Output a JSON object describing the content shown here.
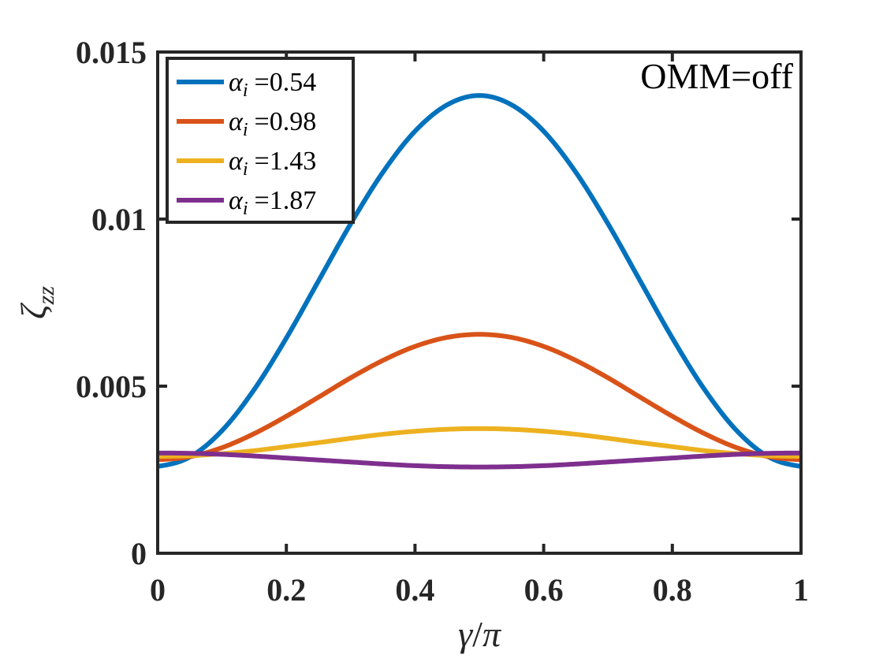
{
  "chart_data": {
    "type": "line",
    "title": "",
    "xlabel": "γ/π",
    "ylabel": "ζzz",
    "xlabel_parts": {
      "sym1": "γ",
      "sep": "/",
      "sym2": "π"
    },
    "ylabel_parts": {
      "sym": "ζ",
      "sub": "zz"
    },
    "xlim": [
      0,
      1
    ],
    "ylim": [
      0,
      0.015
    ],
    "xticks": [
      0,
      0.2,
      0.4,
      0.6,
      0.8,
      1
    ],
    "xtick_labels": [
      "0",
      "0.2",
      "0.4",
      "0.6",
      "0.8",
      "1"
    ],
    "yticks": [
      0,
      0.005,
      0.01,
      0.015
    ],
    "ytick_labels": [
      "0",
      "0.005",
      "0.01",
      "0.015"
    ],
    "grid": false,
    "legend_position": "top-left",
    "annotation": "OMM=off",
    "x": [
      0,
      0.05,
      0.1,
      0.15,
      0.2,
      0.25,
      0.3,
      0.35,
      0.4,
      0.45,
      0.5,
      0.55,
      0.6,
      0.65,
      0.7,
      0.75,
      0.8,
      0.85,
      0.9,
      0.95,
      1
    ],
    "series": [
      {
        "name": "αi =0.54",
        "symbol": "α",
        "sub": "i",
        "value": "=0.54",
        "color": "#0072BD",
        "values": [
          0.0026,
          0.00288,
          0.00367,
          0.0049,
          0.00644,
          0.00815,
          0.00986,
          0.0114,
          0.01263,
          0.01342,
          0.0137,
          0.01342,
          0.01263,
          0.0114,
          0.00986,
          0.00815,
          0.00644,
          0.0049,
          0.00367,
          0.00288,
          0.0026
        ]
      },
      {
        "name": "αi =0.98",
        "symbol": "α",
        "sub": "i",
        "value": "=0.98",
        "color": "#D95319",
        "values": [
          0.0028,
          0.00289,
          0.00316,
          0.00358,
          0.0041,
          0.00467,
          0.00525,
          0.00577,
          0.00619,
          0.00646,
          0.00655,
          0.00646,
          0.00619,
          0.00577,
          0.00525,
          0.00467,
          0.0041,
          0.00358,
          0.00316,
          0.00289,
          0.0028
        ]
      },
      {
        "name": "αi =1.43",
        "symbol": "α",
        "sub": "i",
        "value": "=1.43",
        "color": "#EDB120",
        "values": [
          0.0029,
          0.00292,
          0.00298,
          0.00307,
          0.00319,
          0.00331,
          0.00344,
          0.00356,
          0.00365,
          0.00371,
          0.00373,
          0.00371,
          0.00365,
          0.00356,
          0.00344,
          0.00331,
          0.00319,
          0.00307,
          0.00298,
          0.00292,
          0.0029
        ]
      },
      {
        "name": "αi =1.87",
        "symbol": "α",
        "sub": "i",
        "value": "=1.87",
        "color": "#7E2F8E",
        "values": [
          0.003,
          0.00299,
          0.00296,
          0.00291,
          0.00285,
          0.00279,
          0.00273,
          0.00267,
          0.00262,
          0.00259,
          0.00258,
          0.00259,
          0.00262,
          0.00267,
          0.00273,
          0.00279,
          0.00285,
          0.00291,
          0.00296,
          0.00299,
          0.003
        ]
      }
    ]
  }
}
